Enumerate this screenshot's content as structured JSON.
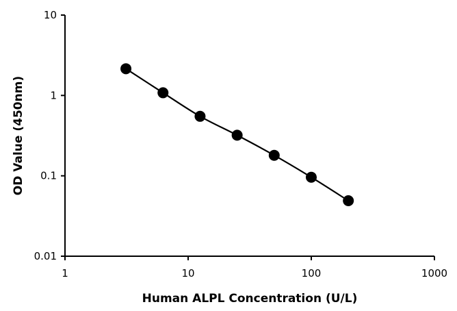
{
  "chart_data": {
    "type": "scatter",
    "title": "",
    "xlabel": "Human ALPL Concentration (U/L)",
    "ylabel": "OD Value (450nm)",
    "x_scale": "log",
    "y_scale": "log",
    "xlim": [
      1,
      1000
    ],
    "ylim": [
      0.01,
      10
    ],
    "x_ticks": [
      "1",
      "10",
      "100",
      "1000"
    ],
    "y_ticks": [
      "0.01",
      "0.1",
      "1",
      "10"
    ],
    "grid": false,
    "legend": "none",
    "colors": {
      "series": "#000000",
      "axis": "#000000"
    },
    "series": [
      {
        "x": [
          3.125,
          6.25,
          12.5,
          25,
          50,
          100,
          200
        ],
        "y": [
          2.15,
          1.08,
          0.55,
          0.32,
          0.18,
          0.096,
          0.049
        ],
        "line": "smooth"
      }
    ]
  }
}
